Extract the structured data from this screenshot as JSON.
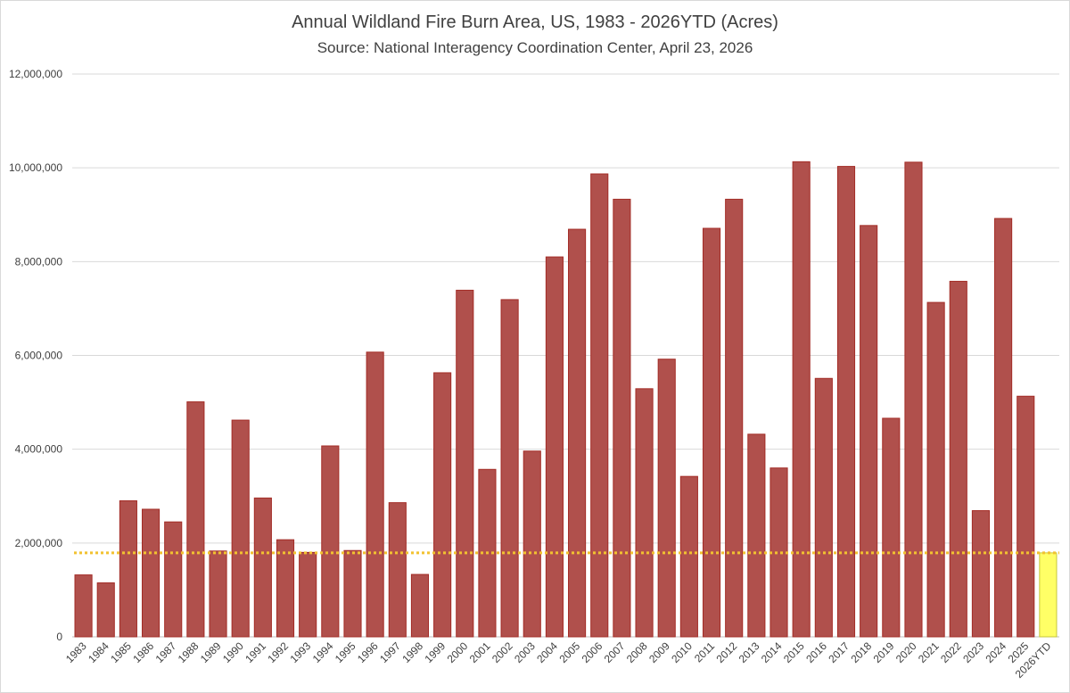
{
  "chart_data": {
    "type": "bar",
    "title": "Annual Wildland Fire Burn Area, US, 1983 - 2026YTD (Acres)",
    "subtitle": "Source: National Interagency Coordination Center, April 23, 2026",
    "xlabel": "",
    "ylabel": "",
    "ylim": [
      0,
      12000000
    ],
    "yticks": [
      0,
      2000000,
      4000000,
      6000000,
      8000000,
      10000000,
      12000000
    ],
    "ytick_labels": [
      "0",
      "2,000,000",
      "4,000,000",
      "6,000,000",
      "8,000,000",
      "10,000,000",
      "12,000,000"
    ],
    "grid": true,
    "categories": [
      "1983",
      "1984",
      "1985",
      "1986",
      "1987",
      "1988",
      "1989",
      "1990",
      "1991",
      "1992",
      "1993",
      "1994",
      "1995",
      "1996",
      "1997",
      "1998",
      "1999",
      "2000",
      "2001",
      "2002",
      "2003",
      "2004",
      "2005",
      "2006",
      "2007",
      "2008",
      "2009",
      "2010",
      "2011",
      "2012",
      "2013",
      "2014",
      "2015",
      "2016",
      "2017",
      "2018",
      "2019",
      "2020",
      "2021",
      "2022",
      "2023",
      "2024",
      "2025",
      "2026YTD"
    ],
    "values": [
      1320000,
      1150000,
      2900000,
      2720000,
      2450000,
      5010000,
      1830000,
      4620000,
      2960000,
      2070000,
      1800000,
      4070000,
      1840000,
      6070000,
      2860000,
      1330000,
      5630000,
      7390000,
      3570000,
      7190000,
      3960000,
      8100000,
      8690000,
      9870000,
      9330000,
      5290000,
      5920000,
      3420000,
      8710000,
      9330000,
      4320000,
      3600000,
      10130000,
      5510000,
      10030000,
      8770000,
      4660000,
      10120000,
      7130000,
      7580000,
      2690000,
      8920000,
      5130000,
      1790000
    ],
    "reference_line": 1790000,
    "colors": {
      "bar": "#b0504c",
      "bar_stroke": "#a32c26",
      "highlight_bar": "#ffff66",
      "highlight_stroke": "#c6c63a",
      "reference_line": "#f2c230"
    }
  }
}
